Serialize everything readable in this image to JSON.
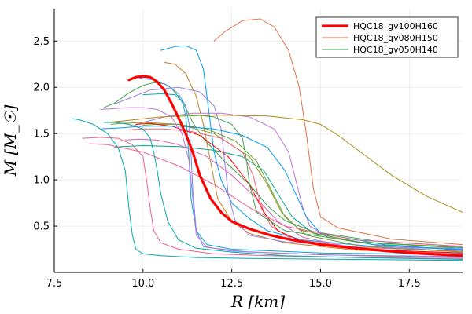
{
  "chart_data": {
    "type": "line",
    "xlabel": "R [km]",
    "ylabel": "M [M_☉]",
    "xlim": [
      7.5,
      19.0
    ],
    "ylim": [
      0.0,
      2.85
    ],
    "xticks": [
      7.5,
      10.0,
      12.5,
      15.0,
      17.5
    ],
    "xtick_labels": [
      "7.5",
      "10.0",
      "12.5",
      "15.0",
      "17.5"
    ],
    "yticks": [
      0.5,
      1.0,
      1.5,
      2.0,
      2.5
    ],
    "ytick_labels": [
      "0.5",
      "1.0",
      "1.5",
      "2.0",
      "2.5"
    ],
    "grid": true,
    "legend_position": "top-right",
    "series": [
      {
        "name": "HQC18_gv100H160",
        "color": "#ff0000",
        "width": 3.2,
        "legend": true,
        "x": [
          19.0,
          17.5,
          16.0,
          15.0,
          14.2,
          13.6,
          13.0,
          12.5,
          12.2,
          11.9,
          11.6,
          11.4,
          11.2,
          11.0,
          10.8,
          10.6,
          10.4,
          10.2,
          10.0,
          9.8,
          9.6
        ],
        "y": [
          0.18,
          0.21,
          0.26,
          0.3,
          0.35,
          0.4,
          0.47,
          0.55,
          0.65,
          0.8,
          1.05,
          1.3,
          1.5,
          1.67,
          1.83,
          1.97,
          2.06,
          2.11,
          2.12,
          2.11,
          2.08
        ]
      },
      {
        "name": "HQC18_gv080H150",
        "color": "#e26f46",
        "width": 1,
        "legend": true,
        "x": [
          19.0,
          17.0,
          15.5,
          15.0,
          14.8,
          14.6,
          14.4,
          14.1,
          13.7,
          13.3,
          12.8,
          12.3,
          12.0
        ],
        "y": [
          0.3,
          0.36,
          0.48,
          0.6,
          0.9,
          1.5,
          2.0,
          2.4,
          2.65,
          2.74,
          2.72,
          2.6,
          2.5
        ]
      },
      {
        "name": "HQC18_gv050H140",
        "color": "#3da44d",
        "width": 1,
        "legend": true,
        "x": [
          19.0,
          16.5,
          14.8,
          14.0,
          13.5,
          13.0,
          12.3,
          11.7,
          11.4,
          11.2,
          11.0,
          10.8,
          10.6,
          10.3,
          10.0,
          9.6,
          9.2,
          8.9
        ],
        "y": [
          0.28,
          0.34,
          0.44,
          0.56,
          0.72,
          0.95,
          1.2,
          1.45,
          1.62,
          1.78,
          1.9,
          1.99,
          2.04,
          2.05,
          2.02,
          1.94,
          1.83,
          1.78
        ]
      },
      {
        "name": "",
        "color": "#009af9",
        "width": 1,
        "legend": false,
        "x": [
          19.0,
          16.5,
          14.5,
          13.5,
          13.0,
          12.5,
          12.2,
          12.0,
          11.9,
          11.8,
          11.7,
          11.5,
          11.2,
          10.9,
          10.5
        ],
        "y": [
          0.25,
          0.28,
          0.35,
          0.45,
          0.58,
          0.75,
          1.0,
          1.3,
          1.6,
          1.9,
          2.2,
          2.4,
          2.45,
          2.44,
          2.4
        ]
      },
      {
        "name": "",
        "color": "#c271d2",
        "width": 1,
        "legend": false,
        "x": [
          19.0,
          16.8,
          15.2,
          14.7,
          14.5,
          14.3,
          14.1,
          13.7,
          13.0,
          12.2,
          11.4,
          10.6,
          10.0,
          9.7
        ],
        "y": [
          0.22,
          0.28,
          0.38,
          0.5,
          0.7,
          1.0,
          1.3,
          1.55,
          1.68,
          1.72,
          1.72,
          1.68,
          1.62,
          1.58
        ]
      },
      {
        "name": "",
        "color": "#ac8d18",
        "width": 1,
        "legend": false,
        "x": [
          19.0,
          18.0,
          17.0,
          16.2,
          15.5,
          15.0,
          14.5,
          13.5,
          12.0,
          10.5,
          9.5,
          9.0
        ],
        "y": [
          0.65,
          0.82,
          1.05,
          1.28,
          1.48,
          1.6,
          1.65,
          1.69,
          1.7,
          1.68,
          1.64,
          1.62
        ]
      },
      {
        "name": "",
        "color": "#00a9ad",
        "width": 1,
        "legend": false,
        "x": [
          19.0,
          16.0,
          13.0,
          11.5,
          10.5,
          10.0,
          9.8,
          9.7,
          9.6,
          9.5,
          9.3,
          9.0,
          8.6,
          8.2,
          8.0
        ],
        "y": [
          0.13,
          0.14,
          0.15,
          0.16,
          0.18,
          0.2,
          0.25,
          0.4,
          0.7,
          1.1,
          1.35,
          1.5,
          1.6,
          1.65,
          1.66
        ]
      },
      {
        "name": "",
        "color": "#ed5e93",
        "width": 1,
        "legend": false,
        "x": [
          19.0,
          16.0,
          13.5,
          12.0,
          11.0,
          10.5,
          10.3,
          10.2,
          10.1,
          10.0,
          9.7,
          9.3,
          8.8,
          8.3
        ],
        "y": [
          0.15,
          0.16,
          0.18,
          0.2,
          0.25,
          0.32,
          0.45,
          0.7,
          1.0,
          1.25,
          1.38,
          1.45,
          1.46,
          1.45
        ]
      },
      {
        "name": "",
        "color": "#c68125",
        "width": 1,
        "legend": false,
        "x": [
          19.0,
          16.0,
          14.0,
          13.0,
          12.5,
          12.1,
          11.9,
          11.7,
          11.5,
          11.2,
          10.9,
          10.6
        ],
        "y": [
          0.2,
          0.24,
          0.32,
          0.42,
          0.55,
          0.8,
          1.2,
          1.6,
          1.9,
          2.15,
          2.25,
          2.27
        ]
      },
      {
        "name": "",
        "color": "#00a98d",
        "width": 1,
        "legend": false,
        "x": [
          19.0,
          16.5,
          14.8,
          14.2,
          13.8,
          13.4,
          12.8,
          12.0,
          11.0,
          10.0,
          9.4,
          9.2
        ],
        "y": [
          0.24,
          0.3,
          0.42,
          0.6,
          0.85,
          1.1,
          1.25,
          1.32,
          1.36,
          1.37,
          1.36,
          1.35
        ]
      },
      {
        "name": "",
        "color": "#8e971d",
        "width": 1,
        "legend": false,
        "x": [
          19.0,
          16.0,
          14.4,
          13.9,
          13.5,
          13.0,
          12.0,
          11.0,
          10.0,
          9.4,
          9.1
        ],
        "y": [
          0.26,
          0.33,
          0.46,
          0.65,
          0.95,
          1.25,
          1.5,
          1.6,
          1.62,
          1.61,
          1.6
        ]
      },
      {
        "name": "",
        "color": "#00a8cb",
        "width": 1,
        "legend": false,
        "x": [
          19.0,
          15.0,
          12.5,
          11.8,
          11.5,
          11.35,
          11.3,
          11.25,
          11.2,
          11.1,
          10.9,
          10.5,
          10.0
        ],
        "y": [
          0.19,
          0.21,
          0.25,
          0.3,
          0.45,
          0.8,
          1.2,
          1.5,
          1.7,
          1.85,
          1.92,
          1.93,
          1.92
        ]
      },
      {
        "name": "",
        "color": "#9b7fe9",
        "width": 1,
        "legend": false,
        "x": [
          19.0,
          16.0,
          14.0,
          13.0,
          12.6,
          12.4,
          12.3,
          12.2,
          12.0,
          11.6,
          11.0,
          10.2,
          9.6,
          9.2
        ],
        "y": [
          0.26,
          0.28,
          0.33,
          0.4,
          0.55,
          0.85,
          1.2,
          1.55,
          1.8,
          1.95,
          2.0,
          1.97,
          1.88,
          1.82
        ]
      },
      {
        "name": "",
        "color": "#618df6",
        "width": 1,
        "legend": false,
        "x": [
          19.0,
          15.0,
          12.5,
          11.7,
          11.5,
          11.4,
          11.35,
          11.3,
          11.2,
          11.0,
          10.7,
          10.3,
          9.9
        ],
        "y": [
          0.17,
          0.19,
          0.23,
          0.28,
          0.45,
          0.9,
          1.3,
          1.6,
          1.8,
          1.93,
          2.02,
          2.08,
          2.1
        ]
      },
      {
        "name": "",
        "color": "#f05f73",
        "width": 1,
        "legend": false,
        "x": [
          19.0,
          16.0,
          14.2,
          13.6,
          13.3,
          13.1,
          12.8,
          12.2,
          11.4,
          10.6,
          10.0,
          9.6
        ],
        "y": [
          0.23,
          0.27,
          0.36,
          0.5,
          0.75,
          1.05,
          1.3,
          1.45,
          1.52,
          1.55,
          1.55,
          1.54
        ]
      },
      {
        "name": "",
        "color": "#dd64b5",
        "width": 1,
        "legend": false,
        "x": [
          19.0,
          16.0,
          14.5,
          13.8,
          13.2,
          12.5,
          11.8,
          11.0,
          10.4,
          9.9,
          9.5
        ],
        "y": [
          0.2,
          0.26,
          0.38,
          0.55,
          0.8,
          1.05,
          1.25,
          1.38,
          1.43,
          1.44,
          1.43
        ]
      },
      {
        "name": "",
        "color": "#6b9e32",
        "width": 1,
        "legend": false,
        "x": [
          19.0,
          16.2,
          14.6,
          14.0,
          13.6,
          13.2,
          12.6,
          11.8,
          11.0,
          10.4,
          10.0
        ],
        "y": [
          0.22,
          0.28,
          0.4,
          0.6,
          0.9,
          1.2,
          1.42,
          1.55,
          1.6,
          1.6,
          1.59
        ]
      },
      {
        "name": "",
        "color": "#ff0000",
        "width": 1,
        "legend": false,
        "x": [
          19.0,
          16.0,
          14.5,
          13.8,
          13.4,
          13.0,
          12.4,
          11.6,
          10.8,
          10.2,
          9.8
        ],
        "y": [
          0.21,
          0.25,
          0.33,
          0.45,
          0.65,
          0.95,
          1.25,
          1.48,
          1.58,
          1.61,
          1.6
        ]
      },
      {
        "name": "",
        "color": "#009af9",
        "width": 1,
        "legend": false,
        "x": [
          19.0,
          16.8,
          15.0,
          14.6,
          14.3,
          14.0,
          13.5,
          12.8,
          12.0,
          11.0,
          10.0,
          9.3,
          8.8
        ],
        "y": [
          0.24,
          0.3,
          0.42,
          0.6,
          0.85,
          1.1,
          1.35,
          1.48,
          1.55,
          1.58,
          1.58,
          1.56,
          1.55
        ]
      },
      {
        "name": "",
        "color": "#3da44d",
        "width": 1,
        "legend": false,
        "x": [
          19.0,
          16.0,
          14.0,
          13.2,
          13.0,
          12.9,
          12.8,
          12.5,
          12.0,
          11.5,
          11.0
        ],
        "y": [
          0.27,
          0.33,
          0.45,
          0.65,
          0.95,
          1.25,
          1.45,
          1.6,
          1.68,
          1.7,
          1.7
        ]
      },
      {
        "name": "",
        "color": "#c271d2",
        "width": 1,
        "legend": false,
        "x": [
          19.0,
          16.0,
          13.0,
          11.8,
          11.5,
          11.4,
          11.3,
          11.1,
          10.8,
          10.4,
          10.0,
          9.6,
          9.2,
          8.8
        ],
        "y": [
          0.16,
          0.18,
          0.22,
          0.27,
          0.4,
          0.8,
          1.2,
          1.5,
          1.68,
          1.76,
          1.78,
          1.78,
          1.77,
          1.76
        ]
      },
      {
        "name": "",
        "color": "#ed5e93",
        "width": 1,
        "legend": false,
        "x": [
          19.0,
          16.0,
          14.0,
          13.0,
          12.0,
          11.0,
          10.0,
          9.0,
          8.5
        ],
        "y": [
          0.28,
          0.35,
          0.5,
          0.7,
          0.95,
          1.15,
          1.3,
          1.38,
          1.39
        ]
      },
      {
        "name": "",
        "color": "#00a9ad",
        "width": 1,
        "legend": false,
        "x": [
          19.0,
          16.0,
          14.0,
          12.5,
          11.5,
          11.0,
          10.7,
          10.5,
          10.4,
          10.3,
          10.2,
          10.0,
          9.6,
          9.2,
          8.9
        ],
        "y": [
          0.14,
          0.16,
          0.18,
          0.22,
          0.26,
          0.35,
          0.55,
          0.85,
          1.1,
          1.3,
          1.45,
          1.55,
          1.6,
          1.62,
          1.62
        ]
      }
    ]
  }
}
